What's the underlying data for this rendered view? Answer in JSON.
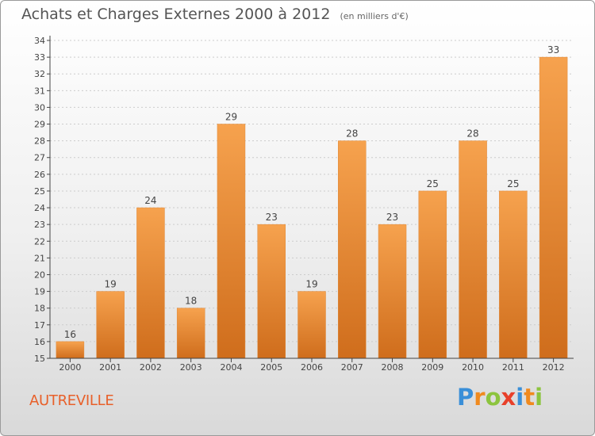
{
  "header": {
    "title": "Achats et Charges Externes 2000 à 2012",
    "unit": "(en milliers d'€)"
  },
  "footer": {
    "location": "AUTREVILLE",
    "brand": "Proxiti",
    "brand_letters": [
      {
        "char": "P",
        "color": "#3a8fd8"
      },
      {
        "char": "r",
        "color": "#f08a1e"
      },
      {
        "char": "o",
        "color": "#8cc43e"
      },
      {
        "char": "x",
        "color": "#e8402a"
      },
      {
        "char": "i",
        "color": "#3a8fd8"
      },
      {
        "char": "t",
        "color": "#f08a1e"
      },
      {
        "char": "i",
        "color": "#8cc43e"
      }
    ]
  },
  "colors": {
    "bar_light": "#f6a24e",
    "bar_dark": "#cf6d1c",
    "axis": "#444444",
    "grid": "#cccccc"
  },
  "chart_data": {
    "type": "bar",
    "title": "Achats et Charges Externes 2000 à 2012",
    "subtitle": "(en milliers d'€)",
    "xlabel": "",
    "ylabel": "",
    "categories": [
      "2000",
      "2001",
      "2002",
      "2003",
      "2004",
      "2005",
      "2006",
      "2007",
      "2008",
      "2009",
      "2010",
      "2011",
      "2012"
    ],
    "values": [
      16,
      19,
      24,
      18,
      29,
      23,
      19,
      28,
      23,
      25,
      28,
      25,
      33
    ],
    "ylim": [
      15,
      34
    ],
    "yticks": [
      15,
      16,
      17,
      18,
      19,
      20,
      21,
      22,
      23,
      24,
      25,
      26,
      27,
      28,
      29,
      30,
      31,
      32,
      33,
      34
    ],
    "grid": "horizontal dashed",
    "data_labels": true
  }
}
